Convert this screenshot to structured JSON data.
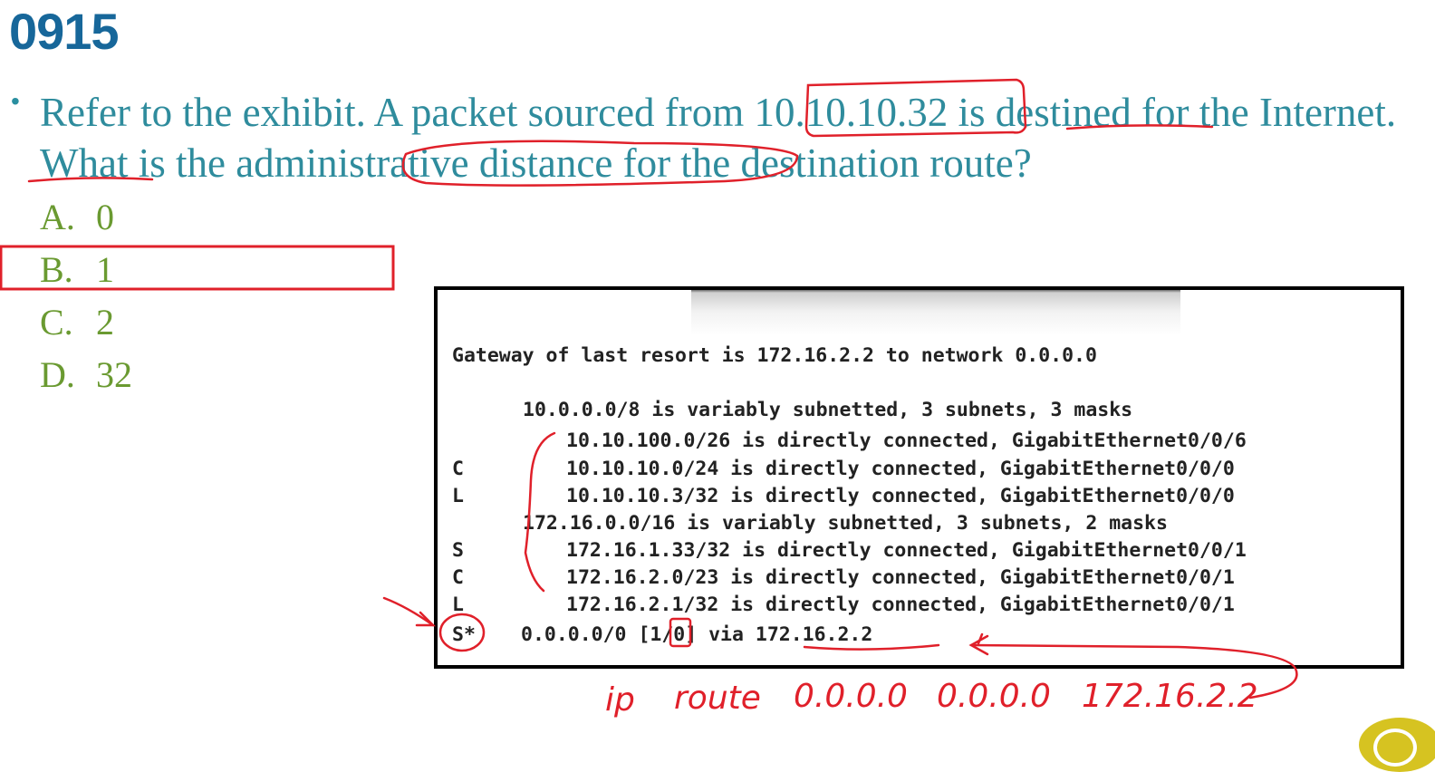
{
  "question_number": "0915",
  "question": {
    "parts": [
      "Refer to the exhibit. A packet sourced from ",
      "10.10.10.32",
      " is ",
      "destined",
      " for the ",
      "Internet",
      ". What is the ",
      "administrative distance",
      " for the destination route?"
    ]
  },
  "choices": [
    {
      "letter": "A.",
      "value": "0"
    },
    {
      "letter": "B.",
      "value": "1"
    },
    {
      "letter": "C.",
      "value": "2"
    },
    {
      "letter": "D.",
      "value": "32"
    }
  ],
  "exhibit": {
    "gateway_line": "Gateway of last resort is 172.16.2.2 to network 0.0.0.0",
    "routes": [
      {
        "code": "",
        "text": "10.0.0.0/8 is variably subnetted, 3 subnets, 3 masks"
      },
      {
        "code": "",
        "text": "10.10.100.0/26 is directly connected, GigabitEthernet0/0/6"
      },
      {
        "code": "C",
        "text": "10.10.10.0/24 is directly connected, GigabitEthernet0/0/0"
      },
      {
        "code": "L",
        "text": "10.10.10.3/32 is directly connected, GigabitEthernet0/0/0"
      },
      {
        "code": "",
        "text": "172.16.0.0/16 is variably subnetted, 3 subnets, 2 masks"
      },
      {
        "code": "S",
        "text": "172.16.1.33/32 is directly connected, GigabitEthernet0/0/1"
      },
      {
        "code": "C",
        "text": "172.16.2.0/23 is directly connected, GigabitEthernet0/0/1"
      },
      {
        "code": "L",
        "text": "172.16.2.1/32 is directly connected, GigabitEthernet0/0/1"
      },
      {
        "code": "S*",
        "text": "0.0.0.0/0 [1/0] via 172.16.2.2"
      }
    ]
  },
  "handwriting": {
    "command": [
      "ip",
      "route",
      "0.0.0.0",
      "0.0.0.0",
      "172.16.2.2"
    ]
  },
  "colors": {
    "title": "#17679a",
    "question": "#2f8c9d",
    "choices": "#6a9a31",
    "annotation": "#e0202a"
  }
}
